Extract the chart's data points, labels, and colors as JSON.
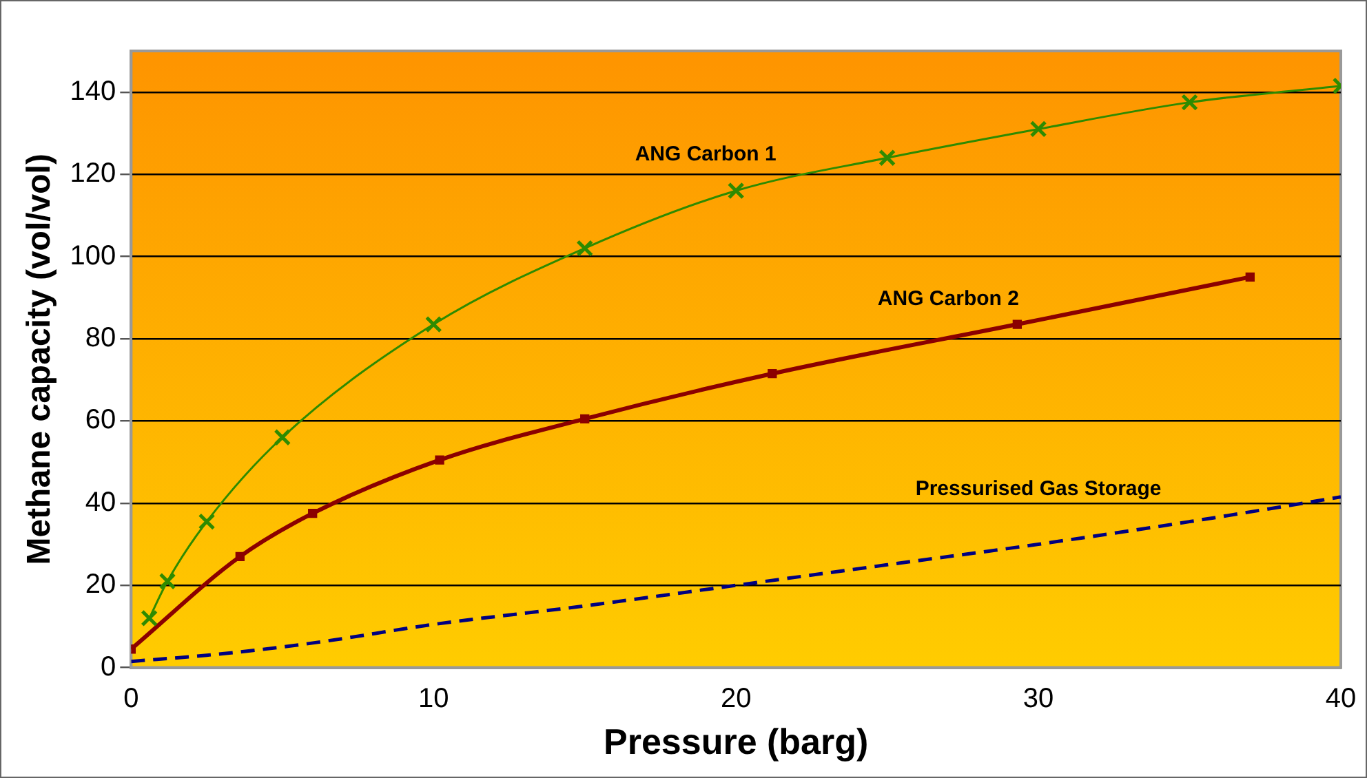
{
  "chart_data": {
    "type": "line",
    "xlabel": "Pressure (barg)",
    "ylabel": "Methane capacity (vol/vol)",
    "xlim": [
      0,
      40
    ],
    "xticks": [
      0,
      10,
      20,
      30,
      40
    ],
    "ylim": [
      0,
      150
    ],
    "yticks": [
      0,
      20,
      40,
      60,
      80,
      100,
      120,
      140
    ],
    "grid": "y",
    "legend": false,
    "series": [
      {
        "name": "ANG Carbon 1",
        "color": "#2e8b00",
        "marker": "cross",
        "line_style": "solid",
        "x": [
          0.6,
          1.2,
          2.5,
          5,
          10,
          15,
          20,
          25,
          30,
          35,
          40
        ],
        "values": [
          12,
          21,
          35.5,
          56,
          83.5,
          102,
          116,
          124,
          131,
          137.5,
          141.5
        ]
      },
      {
        "name": "ANG Carbon 2",
        "color": "#8b0000",
        "marker": "square",
        "line_style": "solid",
        "x": [
          0,
          3.6,
          6,
          10.2,
          15,
          21.2,
          29.3,
          37
        ],
        "values": [
          4.5,
          27,
          37.5,
          50.5,
          60.5,
          71.5,
          83.5,
          95
        ]
      },
      {
        "name": "Pressurised Gas Storage",
        "color": "#000080",
        "marker": "none",
        "line_style": "dashed",
        "x": [
          0,
          2.5,
          5,
          6.5,
          10,
          15,
          20,
          25,
          30,
          35,
          40
        ],
        "values": [
          1.5,
          3,
          5,
          6.5,
          10.5,
          15,
          20,
          25,
          30,
          35.5,
          41.5
        ]
      }
    ]
  }
}
